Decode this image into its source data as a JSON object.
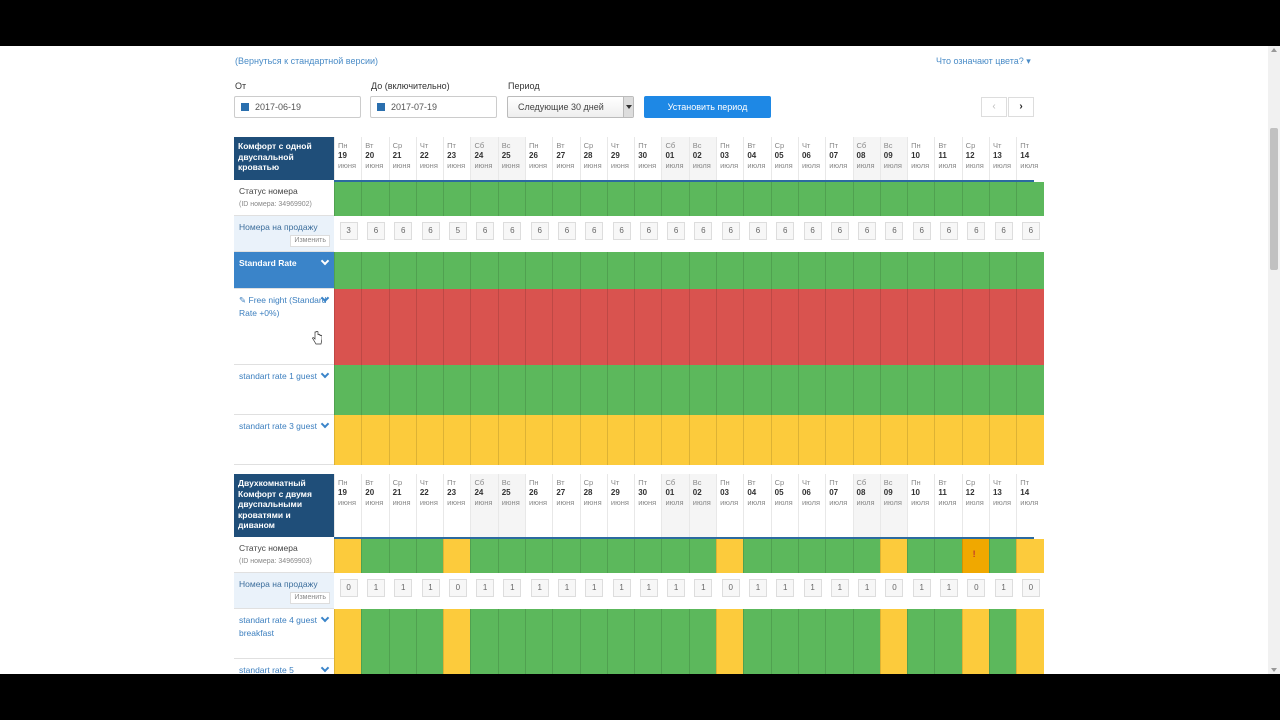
{
  "top_links": {
    "back": "(Вернуться к стандартной версии)",
    "colors": "Что означают цвета?"
  },
  "filters": {
    "from_label": "От",
    "from_value": "2017-06-19",
    "to_label": "До (включительно)",
    "to_value": "2017-07-19",
    "period_label": "Период",
    "period_value": "Следующие 30 дней",
    "set_button": "Установить период",
    "prev": "‹",
    "next": "›"
  },
  "days": [
    {
      "dow": "Пн",
      "d": "19",
      "m": "июня"
    },
    {
      "dow": "Вт",
      "d": "20",
      "m": "июня"
    },
    {
      "dow": "Ср",
      "d": "21",
      "m": "июня"
    },
    {
      "dow": "Чт",
      "d": "22",
      "m": "июня"
    },
    {
      "dow": "Пт",
      "d": "23",
      "m": "июня"
    },
    {
      "dow": "Сб",
      "d": "24",
      "m": "июня"
    },
    {
      "dow": "Вс",
      "d": "25",
      "m": "июня"
    },
    {
      "dow": "Пн",
      "d": "26",
      "m": "июня"
    },
    {
      "dow": "Вт",
      "d": "27",
      "m": "июня"
    },
    {
      "dow": "Ср",
      "d": "28",
      "m": "июня"
    },
    {
      "dow": "Чт",
      "d": "29",
      "m": "июня"
    },
    {
      "dow": "Пт",
      "d": "30",
      "m": "июня"
    },
    {
      "dow": "Сб",
      "d": "01",
      "m": "июля"
    },
    {
      "dow": "Вс",
      "d": "02",
      "m": "июля"
    },
    {
      "dow": "Пн",
      "d": "03",
      "m": "июля"
    },
    {
      "dow": "Вт",
      "d": "04",
      "m": "июля"
    },
    {
      "dow": "Ср",
      "d": "05",
      "m": "июля"
    },
    {
      "dow": "Чт",
      "d": "06",
      "m": "июля"
    },
    {
      "dow": "Пт",
      "d": "07",
      "m": "июля"
    },
    {
      "dow": "Сб",
      "d": "08",
      "m": "июля"
    },
    {
      "dow": "Вс",
      "d": "09",
      "m": "июля"
    },
    {
      "dow": "Пн",
      "d": "10",
      "m": "июля"
    },
    {
      "dow": "Вт",
      "d": "11",
      "m": "июля"
    },
    {
      "dow": "Ср",
      "d": "12",
      "m": "июля"
    },
    {
      "dow": "Чт",
      "d": "13",
      "m": "июля"
    },
    {
      "dow": "Пт",
      "d": "14",
      "m": "июля"
    }
  ],
  "colors": {
    "g": "#5cb85c",
    "r": "#d9534f",
    "y": "#fccb3c",
    "o": "#f0a800"
  },
  "room1": {
    "title": "Комфорт с одной двуспальной кроватью",
    "status_label": "Статус номера",
    "status_id": "(ID номера: 34969902)",
    "sale_label": "Номера на продажу",
    "change": "Изменить",
    "sale_values": [
      "3",
      "6",
      "6",
      "6",
      "5",
      "6",
      "6",
      "6",
      "6",
      "6",
      "6",
      "6",
      "6",
      "6",
      "6",
      "6",
      "6",
      "6",
      "6",
      "6",
      "6",
      "6",
      "6",
      "6",
      "6",
      "6"
    ],
    "rates": [
      {
        "label": "Standard Rate",
        "color": "g",
        "selected": true
      },
      {
        "label": "Free night (Standard Rate +0%)",
        "color": "r",
        "tag": true
      },
      {
        "label": "standart rate 1 guest",
        "color": "g"
      },
      {
        "label": "standart rate 3 guest",
        "color": "y"
      }
    ]
  },
  "room2": {
    "title": "Двухкомнатный Комфорт с двумя двуспальными кроватями и диваном",
    "status_label": "Статус номера",
    "status_id": "(ID номера: 34969903)",
    "sale_label": "Номера на продажу",
    "change": "Изменить",
    "status_colors": [
      "y",
      "g",
      "g",
      "g",
      "y",
      "g",
      "g",
      "g",
      "g",
      "g",
      "g",
      "g",
      "g",
      "g",
      "y",
      "g",
      "g",
      "g",
      "g",
      "g",
      "y",
      "g",
      "g",
      "o",
      "g",
      "y"
    ],
    "alert_mark": "!",
    "sale_values": [
      "0",
      "1",
      "1",
      "1",
      "0",
      "1",
      "1",
      "1",
      "1",
      "1",
      "1",
      "1",
      "1",
      "1",
      "0",
      "1",
      "1",
      "1",
      "1",
      "1",
      "0",
      "1",
      "1",
      "0",
      "1",
      "0"
    ],
    "rates": [
      {
        "label": "standart rate 4 guest breakfast",
        "color_row": [
          "y",
          "g",
          "g",
          "g",
          "y",
          "g",
          "g",
          "g",
          "g",
          "g",
          "g",
          "g",
          "g",
          "g",
          "y",
          "g",
          "g",
          "g",
          "g",
          "g",
          "y",
          "g",
          "g",
          "y",
          "g",
          "y"
        ]
      },
      {
        "label": "standart rate 5"
      }
    ]
  }
}
